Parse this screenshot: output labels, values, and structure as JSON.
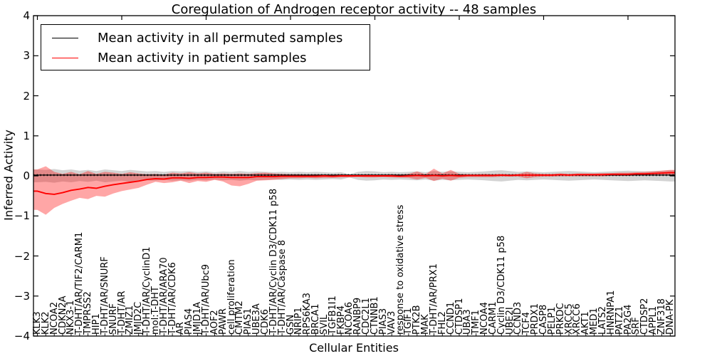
{
  "chart_data": {
    "type": "line",
    "title": "Coregulation of Androgen receptor activity -- 48 samples",
    "xlabel": "Cellular Entities",
    "ylabel": "Inferred Activity",
    "ylim": [
      -4,
      4
    ],
    "yticks": [
      4,
      3,
      2,
      1,
      0,
      -1,
      -2,
      -3,
      -4
    ],
    "ytick_labels": [
      "4",
      "3",
      "2",
      "1",
      "0",
      "−1",
      "−2",
      "−3",
      "−4"
    ],
    "grid": false,
    "legend_position": "upper left",
    "categories": [
      "KLK3",
      "KLK2",
      "NCOA2",
      "CDKN2A",
      "NKX3-1",
      "T-DHT/AR/TIF2/CARM1",
      "TMPRSS2",
      "HIP1",
      "T-DHT/AR/SNURF",
      "SNURF",
      "T-DHT/AR",
      "ZMIZ1",
      "JMJD2C",
      "T-DHT/AR/CyclinD1",
      "mol:T-DHT",
      "T-DHT/AR/ARA70",
      "T-DHT/AR/CDK6",
      "AR",
      "PIAS4",
      "JMJD1A",
      "T-DHT/AR/Ubc9",
      "AOF2",
      "PAWR",
      "cell proliferation",
      "CMTM2",
      "PIAS1",
      "UBE3A",
      "CDK6",
      "T-DHT/AR/Cyclin D3/CDK11 p58",
      "T-DHT/AR/Caspase 8",
      "GSN",
      "NRIP1",
      "RPS6KA3",
      "BRCA1",
      "SVIL",
      "TGFB1I1",
      "FKBP4",
      "NCOA6",
      "RANBP9",
      "CDC2L1",
      "CTNNB1",
      "PIAS3",
      "VAV3",
      "response to oxidative stress",
      "TGIF1",
      "PTK2B",
      "MAK",
      "T-DHT/AR/PRX1",
      "FHL2",
      "CCND1",
      "CTDSP1",
      "UBA3",
      "TMF1",
      "NCOA4",
      "CARM1",
      "Cyclin D3/CDK11 p58",
      "UBE2I",
      "CCND3",
      "TCF4",
      "PRDX1",
      "CASP8",
      "PELP1",
      "PRKDC",
      "XRCC5",
      "XRCC6",
      "AKT1",
      "MED1",
      "LATS2",
      "HNRNPA1",
      "PATZ1",
      "PA2G4",
      "SRF",
      "CTDSP2",
      "APPL1",
      "ZNF318",
      "DNA-PK"
    ],
    "series": [
      {
        "name": "Mean activity in all permuted samples",
        "color": "#000000",
        "values": [
          0.02,
          0.02,
          0.02,
          0.02,
          0.02,
          0.02,
          0.02,
          0.02,
          0.02,
          0.02,
          0.02,
          0.02,
          0.02,
          0.02,
          0.02,
          0.02,
          0.02,
          0.02,
          0.02,
          0.02,
          0.02,
          0.02,
          0.02,
          0.02,
          0.02,
          0.02,
          0.02,
          0.02,
          0.02,
          0.02,
          0.02,
          0.02,
          0.02,
          0.02,
          0.02,
          0.02,
          0.02,
          0.02,
          0.02,
          0.02,
          0.02,
          0.02,
          0.02,
          0.02,
          0.02,
          0.02,
          0.02,
          0.02,
          0.02,
          0.02,
          0.02,
          0.02,
          0.02,
          0.02,
          0.02,
          0.02,
          0.02,
          0.02,
          0.02,
          0.02,
          0.02,
          0.02,
          0.02,
          0.02,
          0.02,
          0.02,
          0.02,
          0.02,
          0.02,
          0.02,
          0.02,
          0.02,
          0.02,
          0.02,
          0.02,
          0.02
        ],
        "band": {
          "color": "#808080",
          "opacity": 0.35,
          "upper": [
            0.16,
            0.15,
            0.17,
            0.14,
            0.16,
            0.13,
            0.15,
            0.12,
            0.16,
            0.14,
            0.12,
            0.15,
            0.13,
            0.11,
            0.12,
            0.1,
            0.12,
            0.11,
            0.12,
            0.1,
            0.11,
            0.09,
            0.11,
            0.1,
            0.12,
            0.1,
            0.11,
            0.1,
            0.09,
            0.1,
            0.09,
            0.1,
            0.09,
            0.1,
            0.09,
            0.08,
            0.09,
            0.04,
            0.1,
            0.12,
            0.11,
            0.09,
            0.1,
            0.09,
            0.1,
            0.11,
            0.09,
            0.12,
            0.1,
            0.11,
            0.1,
            0.09,
            0.1,
            0.11,
            0.13,
            0.14,
            0.12,
            0.1,
            0.11,
            0.1,
            0.09,
            0.1,
            0.11,
            0.12,
            0.11,
            0.1,
            0.09,
            0.1,
            0.11,
            0.12,
            0.13,
            0.12,
            0.11,
            0.12,
            0.13,
            0.14
          ],
          "lower": [
            -0.16,
            -0.15,
            -0.17,
            -0.14,
            -0.16,
            -0.13,
            -0.15,
            -0.12,
            -0.16,
            -0.14,
            -0.12,
            -0.15,
            -0.13,
            -0.11,
            -0.12,
            -0.1,
            -0.12,
            -0.11,
            -0.12,
            -0.1,
            -0.11,
            -0.09,
            -0.11,
            -0.1,
            -0.12,
            -0.1,
            -0.11,
            -0.1,
            -0.09,
            -0.1,
            -0.09,
            -0.1,
            -0.09,
            -0.1,
            -0.09,
            -0.08,
            -0.09,
            -0.04,
            -0.1,
            -0.12,
            -0.11,
            -0.09,
            -0.1,
            -0.09,
            -0.1,
            -0.11,
            -0.09,
            -0.12,
            -0.1,
            -0.11,
            -0.1,
            -0.09,
            -0.1,
            -0.11,
            -0.13,
            -0.14,
            -0.12,
            -0.1,
            -0.11,
            -0.1,
            -0.09,
            -0.1,
            -0.11,
            -0.12,
            -0.11,
            -0.1,
            -0.09,
            -0.1,
            -0.11,
            -0.12,
            -0.13,
            -0.12,
            -0.11,
            -0.12,
            -0.13,
            -0.14
          ]
        }
      },
      {
        "name": "Mean activity in patient samples",
        "color": "#ff0000",
        "values": [
          -0.38,
          -0.44,
          -0.46,
          -0.42,
          -0.36,
          -0.33,
          -0.29,
          -0.31,
          -0.26,
          -0.22,
          -0.19,
          -0.16,
          -0.13,
          -0.09,
          -0.07,
          -0.08,
          -0.05,
          -0.05,
          -0.06,
          -0.04,
          -0.04,
          -0.03,
          -0.03,
          -0.04,
          -0.04,
          -0.04,
          -0.02,
          -0.02,
          -0.02,
          -0.01,
          -0.01,
          -0.01,
          -0.01,
          -0.01,
          0.0,
          -0.01,
          0.0,
          0.0,
          0.0,
          0.0,
          0.0,
          0.0,
          0.0,
          -0.01,
          0.0,
          0.01,
          0.0,
          0.01,
          0.0,
          0.01,
          0.0,
          0.01,
          0.01,
          0.01,
          0.01,
          0.02,
          0.01,
          0.02,
          0.02,
          0.02,
          0.02,
          0.02,
          0.03,
          0.02,
          0.03,
          0.03,
          0.03,
          0.03,
          0.04,
          0.04,
          0.04,
          0.05,
          0.05,
          0.06,
          0.07,
          0.08
        ],
        "band": {
          "color": "#ff0000",
          "opacity": 0.35,
          "upper": [
            0.16,
            0.24,
            0.1,
            0.05,
            0.1,
            0.04,
            0.12,
            0.05,
            0.1,
            0.08,
            0.05,
            0.09,
            0.06,
            0.04,
            0.05,
            0.03,
            0.08,
            0.06,
            0.09,
            0.06,
            0.08,
            0.05,
            0.06,
            0.05,
            0.06,
            0.05,
            0.07,
            0.08,
            0.06,
            0.05,
            0.04,
            0.04,
            0.03,
            0.04,
            0.03,
            0.03,
            0.04,
            0.03,
            0.03,
            0.04,
            0.03,
            0.03,
            0.04,
            0.03,
            0.05,
            0.11,
            0.04,
            0.18,
            0.06,
            0.15,
            0.05,
            0.04,
            0.04,
            0.05,
            0.04,
            0.05,
            0.04,
            0.05,
            0.1,
            0.06,
            0.05,
            0.05,
            0.06,
            0.05,
            0.06,
            0.06,
            0.06,
            0.07,
            0.07,
            0.08,
            0.08,
            0.09,
            0.1,
            0.11,
            0.13,
            0.15
          ],
          "lower": [
            -0.85,
            -0.97,
            -0.8,
            -0.7,
            -0.62,
            -0.55,
            -0.58,
            -0.5,
            -0.52,
            -0.44,
            -0.38,
            -0.34,
            -0.3,
            -0.22,
            -0.15,
            -0.18,
            -0.16,
            -0.12,
            -0.18,
            -0.13,
            -0.15,
            -0.1,
            -0.14,
            -0.24,
            -0.26,
            -0.2,
            -0.12,
            -0.11,
            -0.1,
            -0.08,
            -0.06,
            -0.06,
            -0.05,
            -0.06,
            -0.05,
            -0.05,
            -0.04,
            -0.04,
            -0.03,
            -0.04,
            -0.04,
            -0.03,
            -0.04,
            -0.04,
            -0.05,
            -0.09,
            -0.05,
            -0.13,
            -0.07,
            -0.12,
            -0.05,
            -0.03,
            -0.03,
            -0.03,
            -0.03,
            -0.02,
            -0.02,
            -0.02,
            -0.06,
            -0.03,
            -0.02,
            -0.02,
            -0.01,
            -0.01,
            -0.01,
            -0.01,
            -0.01,
            -0.01,
            0.0,
            0.0,
            0.0,
            0.01,
            0.01,
            0.01,
            0.02,
            0.02
          ]
        }
      }
    ]
  }
}
